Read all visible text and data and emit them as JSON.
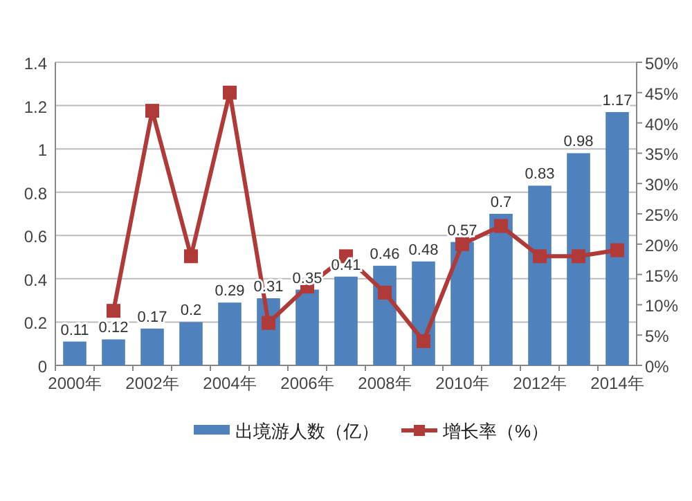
{
  "chart_data": {
    "type": "bar",
    "categories": [
      "2000年",
      null,
      "2002年",
      null,
      "2004年",
      null,
      "2006年",
      null,
      "2008年",
      null,
      "2010年",
      null,
      "2012年",
      null,
      "2014年"
    ],
    "series": [
      {
        "name": "出境游人数（亿）",
        "color": "#4f81bd",
        "values": [
          0.11,
          0.12,
          0.17,
          0.2,
          0.29,
          0.31,
          0.35,
          0.41,
          0.46,
          0.48,
          0.57,
          0.7,
          0.83,
          0.98,
          1.17
        ],
        "value_labels": [
          "0.11",
          "0.12",
          "0.17",
          "0.2",
          "0.29",
          "0.31",
          "0.35",
          "0.41",
          "0.46",
          "0.48",
          "0.57",
          "0.7",
          "0.83",
          "0.98",
          "1.17"
        ]
      },
      {
        "name": "增长率（%）",
        "type": "line",
        "axis": "y2",
        "color": "#b03a37",
        "marker": "square",
        "values": [
          null,
          9,
          42,
          18,
          45,
          7,
          13,
          18,
          12,
          4,
          20,
          23,
          18,
          18,
          19
        ]
      }
    ],
    "ylim": [
      0,
      1.4
    ],
    "yticks": [
      0,
      0.2,
      0.4,
      0.6,
      0.8,
      1,
      1.2,
      1.4
    ],
    "y2lim": [
      0,
      50
    ],
    "y2ticks": [
      {
        "value": 0,
        "label": "0%"
      },
      {
        "value": 5,
        "label": "5%"
      },
      {
        "value": 10,
        "label": "10%"
      },
      {
        "value": 15,
        "label": "15%"
      },
      {
        "value": 20,
        "label": "20%"
      },
      {
        "value": 25,
        "label": "25%"
      },
      {
        "value": 30,
        "label": "30%"
      },
      {
        "value": 35,
        "label": "35%"
      },
      {
        "value": 40,
        "label": "40%"
      },
      {
        "value": 45,
        "label": "45%"
      },
      {
        "value": 50,
        "label": "50%"
      }
    ],
    "grid": "y",
    "legend": "bottom"
  }
}
